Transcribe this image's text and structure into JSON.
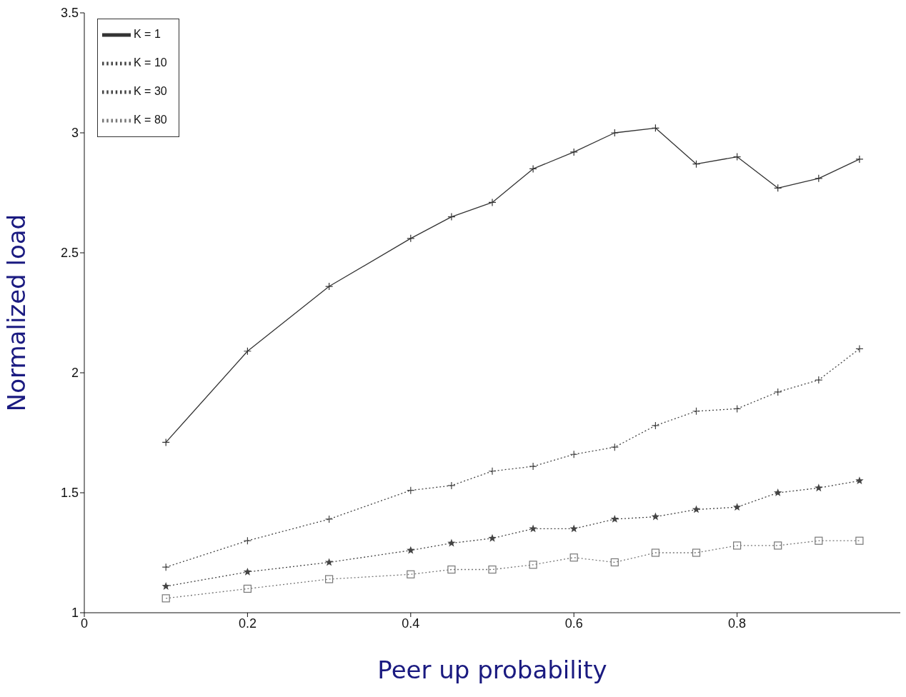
{
  "chart_data": {
    "type": "line",
    "xlabel": "Peer up probability",
    "ylabel": "Normalized load",
    "x": [
      0.1,
      0.2,
      0.3,
      0.4,
      0.45,
      0.5,
      0.55,
      0.6,
      0.65,
      0.7,
      0.75,
      0.8,
      0.85,
      0.9,
      0.95
    ],
    "xlim": [
      0,
      1
    ],
    "xticks": [
      0,
      0.2,
      0.4,
      0.6,
      0.8
    ],
    "ylim": [
      1,
      3.5
    ],
    "yticks": [
      1,
      1.5,
      2,
      2.5,
      3,
      3.5
    ],
    "legend": "top left",
    "grid": false,
    "series": [
      {
        "name": "K = 1",
        "color": "#333333",
        "marker": "cross",
        "line_style": "solid",
        "values": [
          1.71,
          2.09,
          2.36,
          2.56,
          2.65,
          2.71,
          2.85,
          2.92,
          3.0,
          3.02,
          2.87,
          2.9,
          2.77,
          2.81,
          2.89
        ]
      },
      {
        "name": "K = 10",
        "color": "#444444",
        "marker": "cross",
        "line_style": "dotted",
        "values": [
          1.19,
          1.3,
          1.39,
          1.51,
          1.53,
          1.59,
          1.61,
          1.66,
          1.69,
          1.78,
          1.84,
          1.85,
          1.92,
          1.97,
          2.1
        ]
      },
      {
        "name": "K = 30",
        "color": "#444444",
        "marker": "star",
        "line_style": "dotted",
        "values": [
          1.11,
          1.17,
          1.21,
          1.26,
          1.29,
          1.31,
          1.35,
          1.35,
          1.39,
          1.4,
          1.43,
          1.44,
          1.5,
          1.52,
          1.55
        ]
      },
      {
        "name": "K = 80",
        "color": "#777777",
        "marker": "square",
        "line_style": "dotted",
        "values": [
          1.06,
          1.1,
          1.14,
          1.16,
          1.18,
          1.18,
          1.2,
          1.23,
          1.21,
          1.25,
          1.25,
          1.28,
          1.28,
          1.3,
          1.3
        ]
      }
    ]
  }
}
